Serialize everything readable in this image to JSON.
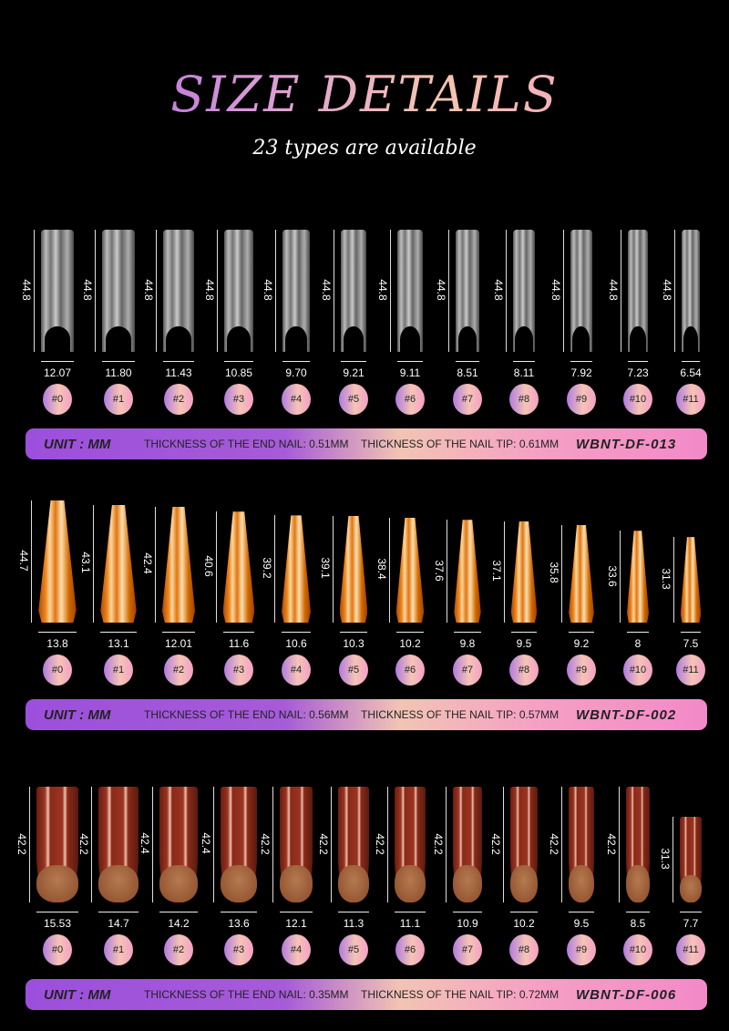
{
  "title": "SIZE DETAILS",
  "subtitle": "23 types are available",
  "sections": [
    {
      "style": "clear",
      "nail_color": "#cccccc",
      "sizes": [
        "#0",
        "#1",
        "#2",
        "#3",
        "#4",
        "#5",
        "#6",
        "#7",
        "#8",
        "#9",
        "#10",
        "#11"
      ],
      "widths": [
        "12.07",
        "11.80",
        "11.43",
        "10.85",
        "9.70",
        "9.21",
        "9.11",
        "8.51",
        "8.11",
        "7.92",
        "7.23",
        "6.54"
      ],
      "lengths": [
        "44.8",
        "44.8",
        "44.8",
        "44.8",
        "44.8",
        "44.8",
        "44.8",
        "44.8",
        "44.8",
        "44.8",
        "44.8",
        "44.8"
      ],
      "banner": {
        "unit": "UNIT : MM",
        "end_thickness": "THICKNESS OF THE END NAIL: 0.51MM",
        "tip_thickness": "THICKNESS OF THE NAIL TIP: 0.61MM",
        "code": "WBNT-DF-013"
      }
    },
    {
      "style": "orange",
      "nail_color": "#e8780a",
      "sizes": [
        "#0",
        "#1",
        "#2",
        "#3",
        "#4",
        "#5",
        "#6",
        "#7",
        "#8",
        "#9",
        "#10",
        "#11"
      ],
      "widths": [
        "13.8",
        "13.1",
        "12.01",
        "11.6",
        "10.6",
        "10.3",
        "10.2",
        "9.8",
        "9.5",
        "9.2",
        "8",
        "7.5"
      ],
      "lengths": [
        "44.7",
        "43.1",
        "42.4",
        "40.6",
        "39.2",
        "39.1",
        "38.4",
        "37.6",
        "37.1",
        "35.8",
        "33.6",
        "31.3"
      ],
      "banner": {
        "unit": "UNIT : MM",
        "end_thickness": "THICKNESS OF THE END NAIL: 0.56MM",
        "tip_thickness": "THICKNESS OF THE NAIL TIP: 0.57MM",
        "code": "WBNT-DF-002"
      }
    },
    {
      "style": "red",
      "nail_color": "#8a2a18",
      "sizes": [
        "#0",
        "#1",
        "#2",
        "#3",
        "#4",
        "#5",
        "#6",
        "#7",
        "#8",
        "#9",
        "#10",
        "#11"
      ],
      "widths": [
        "15.53",
        "14.7",
        "14.2",
        "13.6",
        "12.1",
        "11.3",
        "11.1",
        "10.9",
        "10.2",
        "9.5",
        "8.5",
        "7.7"
      ],
      "lengths": [
        "42.2",
        "42.2",
        "42.4",
        "42.4",
        "42.2",
        "42.2",
        "42.2",
        "42.2",
        "42.2",
        "42.2",
        "42.2",
        "31.3"
      ],
      "banner": {
        "unit": "UNIT : MM",
        "end_thickness": "THICKNESS OF THE END NAIL: 0.35MM",
        "tip_thickness": "THICKNESS OF THE NAIL TIP: 0.72MM",
        "code": "WBNT-DF-006"
      }
    }
  ]
}
